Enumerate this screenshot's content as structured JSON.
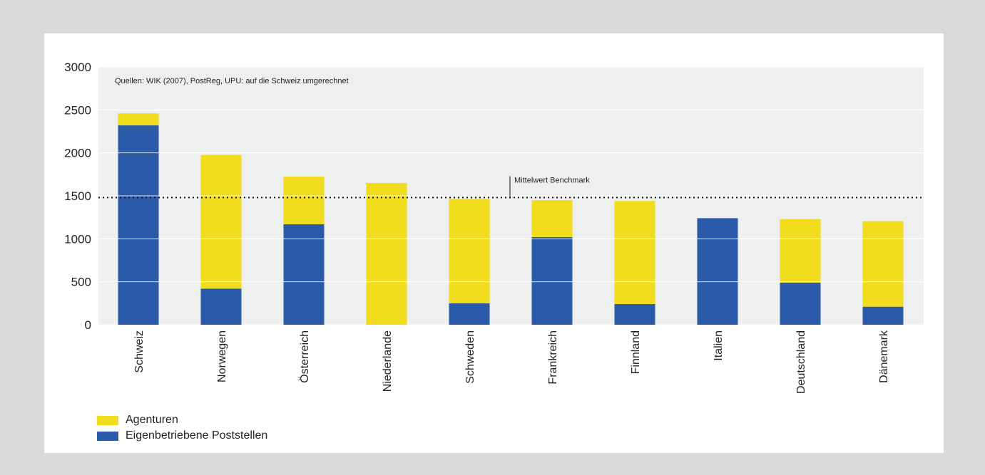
{
  "chart_data": {
    "type": "bar",
    "stacked": true,
    "annotation": "Quellen: WIK (2007), PostReg, UPU: auf die Schweiz umgerechnet",
    "benchmark": {
      "label": "Mittelwert Benchmark",
      "value": 1480
    },
    "categories": [
      "Schweiz",
      "Norwegen",
      "Österreich",
      "Niederlande",
      "Schweden",
      "Frankreich",
      "Finnland",
      "Italien",
      "Deutschland",
      "Dänemark"
    ],
    "series": [
      {
        "name": "Eigenbetriebene Poststellen",
        "color": "#2b5aa8",
        "values": [
          2320,
          420,
          1170,
          0,
          250,
          1020,
          240,
          1240,
          490,
          210
        ]
      },
      {
        "name": "Agenturen",
        "color": "#f1dc1e",
        "values": [
          140,
          1555,
          555,
          1650,
          1215,
          430,
          1200,
          0,
          740,
          995
        ]
      }
    ],
    "legend": [
      "Agenturen",
      "Eigenbetriebene Poststellen"
    ],
    "ylim": [
      0,
      3000
    ],
    "yticks": [
      0,
      500,
      1000,
      1500,
      2000,
      2500,
      3000
    ],
    "grid": true,
    "legend_position": "bottom-left",
    "xlabel": "",
    "ylabel": ""
  }
}
